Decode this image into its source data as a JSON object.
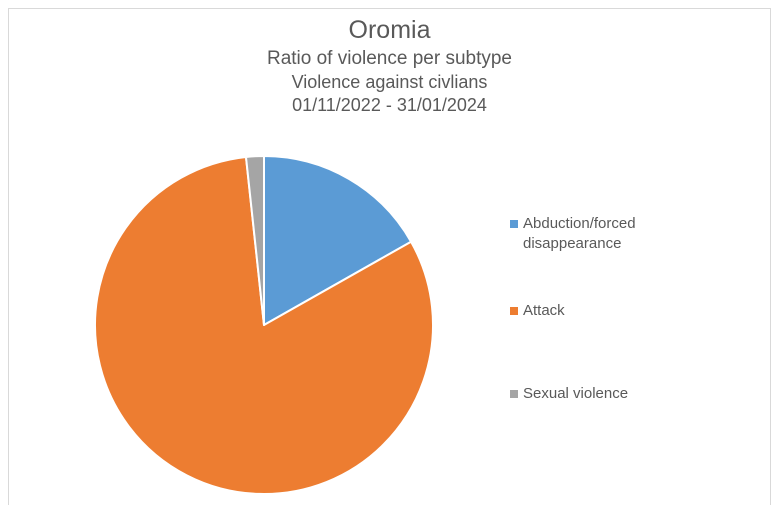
{
  "chart_data": {
    "type": "pie",
    "title": "Oromia",
    "subtitle_lines": [
      "Ratio of violence per subtype",
      "Violence against civlians",
      "01/11/2022 - 31/01/2024"
    ],
    "categories": [
      "Abduction/forced disappearance",
      "Attack",
      "Sexual violence"
    ],
    "values": [
      16.8,
      81.5,
      1.7
    ],
    "colors": [
      "#5b9bd5",
      "#ed7d31",
      "#a5a5a5"
    ],
    "legend_placement": "right",
    "data_labels": false
  }
}
